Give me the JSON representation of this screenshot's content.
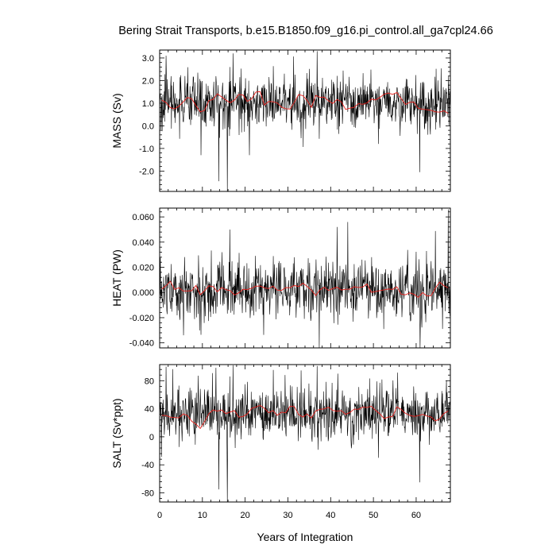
{
  "chart_data": [
    {
      "type": "line",
      "title": "Bering Strait Transports, b.e15.B1850.f09_g16.pi_control.all_ga7cpl24.66",
      "ylabel": "MASS (Sv)",
      "xlim": [
        0,
        68
      ],
      "ylim": [
        -2.9,
        3.35
      ],
      "y_ticks": [
        3.0,
        2.0,
        1.0,
        0.0,
        -1.0,
        -2.0
      ],
      "y_tick_labels": [
        "3.0",
        "2.0",
        "1.0",
        "0.0",
        "-1.0",
        "-2.0"
      ],
      "series": [
        {
          "color": "#000000",
          "kind": "monthly",
          "mean": 1.0,
          "sd": 0.55,
          "spikes": [
            [
              1.5,
              3.1
            ],
            [
              9.7,
              -1.3
            ],
            [
              13.8,
              -2.45
            ],
            [
              15.8,
              -2.9
            ],
            [
              16.4,
              2.6
            ],
            [
              17.2,
              3.2
            ],
            [
              21.0,
              -1.3
            ],
            [
              36.8,
              3.3
            ],
            [
              51.2,
              -0.8
            ],
            [
              60.8,
              -2.05
            ]
          ]
        },
        {
          "color": "#e8201c",
          "kind": "annual",
          "mean": 1.0,
          "sd": 0.17
        }
      ]
    },
    {
      "type": "line",
      "ylabel": "HEAT (PW)",
      "xlim": [
        0,
        68
      ],
      "ylim": [
        -0.044,
        0.067
      ],
      "y_ticks": [
        0.06,
        0.04,
        0.02,
        0.0,
        -0.02,
        -0.04
      ],
      "y_tick_labels": [
        "0.060",
        "0.040",
        "0.020",
        "0.000",
        "-0.020",
        "-0.040"
      ],
      "series": [
        {
          "color": "#000000",
          "kind": "monthly",
          "mean": 0.002,
          "sd": 0.011,
          "spikes": [
            [
              5.6,
              -0.034
            ],
            [
              16.4,
              0.05
            ],
            [
              41.5,
              0.052
            ],
            [
              44.0,
              0.056
            ],
            [
              60.9,
              -0.044
            ],
            [
              67.5,
              0.066
            ]
          ]
        },
        {
          "color": "#e8201c",
          "kind": "annual",
          "mean": 0.002,
          "sd": 0.0025
        }
      ]
    },
    {
      "type": "line",
      "ylabel": "SALT (Sv*ppt)",
      "xlabel": "Years of Integration",
      "xlim": [
        0,
        68
      ],
      "ylim": [
        -93,
        103
      ],
      "y_ticks": [
        80,
        40,
        0,
        -40,
        -80
      ],
      "y_tick_labels": [
        "80",
        "40",
        "0",
        "-40",
        "-80"
      ],
      "x_ticks": [
        0,
        10,
        20,
        30,
        40,
        50,
        60
      ],
      "x_tick_labels": [
        "0",
        "10",
        "20",
        "30",
        "40",
        "50",
        "60"
      ],
      "series": [
        {
          "color": "#000000",
          "kind": "monthly",
          "mean": 33,
          "sd": 18,
          "spikes": [
            [
              1.5,
              100
            ],
            [
              13.8,
              -75
            ],
            [
              15.8,
              -93
            ],
            [
              16.4,
              86
            ],
            [
              17.2,
              102
            ],
            [
              36.8,
              101
            ],
            [
              51.2,
              -30
            ],
            [
              60.8,
              -65
            ]
          ]
        },
        {
          "color": "#e8201c",
          "kind": "annual",
          "mean": 33,
          "sd": 5
        }
      ]
    }
  ]
}
